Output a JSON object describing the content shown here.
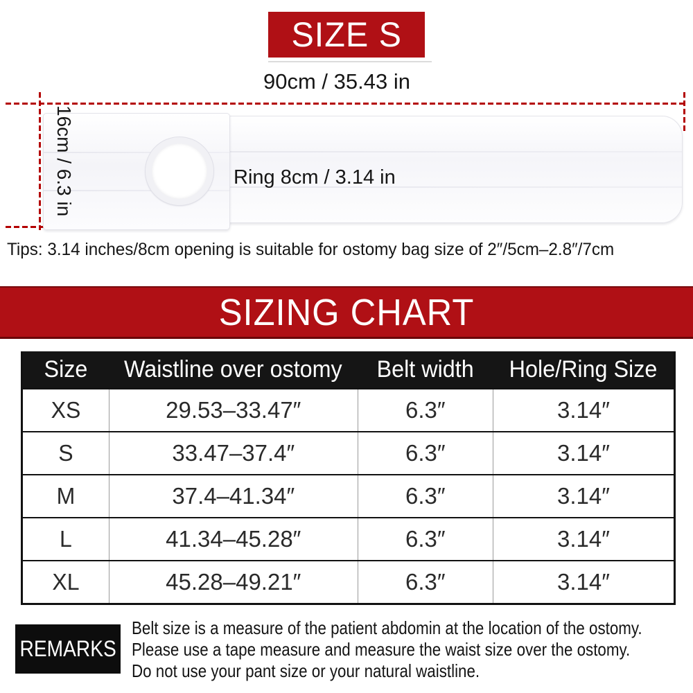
{
  "banner": {
    "size_label": "SIZE S"
  },
  "product": {
    "width_label": "90cm / 35.43 in",
    "height_label": "16cm / 6.3 in",
    "ring_label": "Ring 8cm / 3.14 in"
  },
  "tips": "Tips: 3.14 inches/8cm opening is suitable for ostomy bag size of 2″/5cm–2.8″/7cm",
  "chart_data": {
    "type": "table",
    "title": "SIZING CHART",
    "columns": [
      "Size",
      "Waistline over ostomy",
      "Belt width",
      "Hole/Ring Size"
    ],
    "rows": [
      [
        "XS",
        "29.53–33.47″",
        "6.3″",
        "3.14″"
      ],
      [
        "S",
        "33.47–37.4″",
        "6.3″",
        "3.14″"
      ],
      [
        "M",
        "37.4–41.34″",
        "6.3″",
        "3.14″"
      ],
      [
        "L",
        "41.34–45.28″",
        "6.3″",
        "3.14″"
      ],
      [
        "XL",
        "45.28–49.21″",
        "6.3″",
        "3.14″"
      ]
    ]
  },
  "remarks": {
    "label": "REMARKS",
    "lines": [
      "Belt size is a measure of the patient abdomin at the location of the ostomy.",
      "Please use a tape measure and measure the waist size over the ostomy.",
      "Do not use your pant size or your natural waistline."
    ]
  },
  "colors": {
    "banner_red": "#b01015",
    "dash_red": "#b30000",
    "table_header_bg": "#151515",
    "remarks_bg": "#0d0d0d"
  }
}
